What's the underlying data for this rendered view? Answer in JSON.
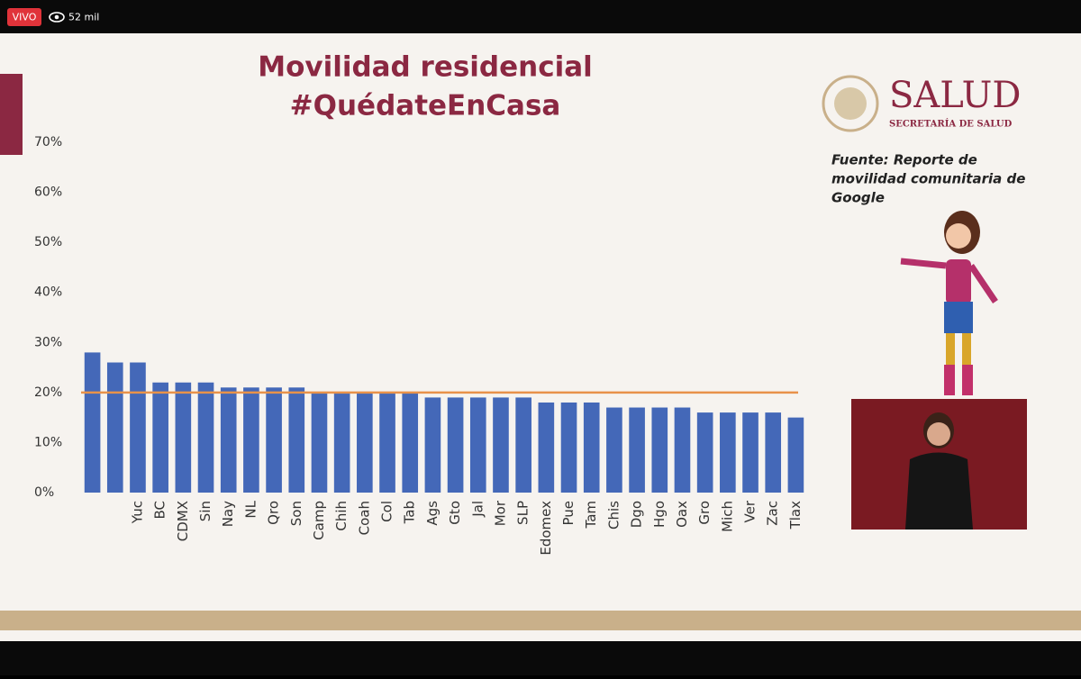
{
  "stream": {
    "live": "VIVO",
    "viewers": "52 mil"
  },
  "branding": {
    "name": "SALUD",
    "subtitle": "SECRETARÍA DE SALUD"
  },
  "source": [
    "Fuente: Reporte de",
    "movilidad comunitaria de",
    "Google"
  ],
  "chart_data": {
    "type": "bar",
    "title": [
      "Movilidad residencial",
      "#QuédateEnCasa"
    ],
    "categories": [
      null,
      null,
      "Yuc",
      "BC",
      "CDMX",
      "Sin",
      "Nay",
      "NL",
      "Qro",
      "Son",
      "Camp",
      "Chih",
      "Coah",
      "Col",
      "Tab",
      "Ags",
      "Gto",
      "Jal",
      "Mor",
      "SLP",
      "Edomex",
      "Pue",
      "Tam",
      "Chis",
      "Dgo",
      "Hgo",
      "Oax",
      "Gro",
      "Mich",
      "Ver",
      "Zac",
      "Tlax"
    ],
    "values": [
      28,
      26,
      26,
      22,
      22,
      22,
      21,
      21,
      21,
      21,
      20,
      20,
      20,
      20,
      20,
      19,
      19,
      19,
      19,
      19,
      18,
      18,
      18,
      17,
      17,
      17,
      17,
      16,
      16,
      16,
      16,
      15
    ],
    "color": "#4468b8",
    "reference_line": 20,
    "reference_color": "#e8924a",
    "ylim": [
      0,
      70
    ],
    "yticks": [
      {
        "value": 0,
        "label": "0%"
      },
      {
        "value": 10,
        "label": "10%"
      },
      {
        "value": 20,
        "label": "20%"
      },
      {
        "value": 30,
        "label": "30%"
      },
      {
        "value": 40,
        "label": "40%"
      },
      {
        "value": 50,
        "label": "50%"
      },
      {
        "value": 60,
        "label": "60%"
      },
      {
        "value": 70,
        "label": "70%"
      }
    ],
    "grid": false
  }
}
